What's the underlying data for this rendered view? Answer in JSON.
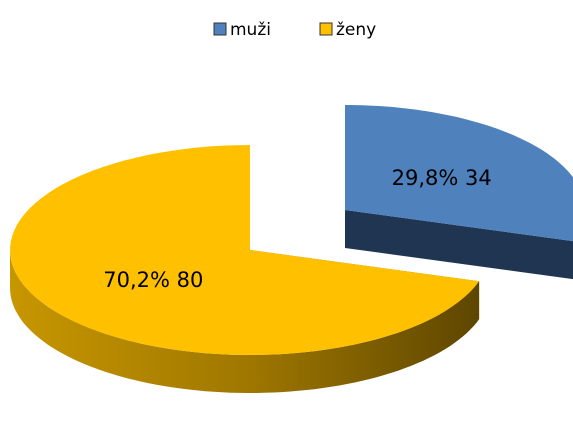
{
  "chart_data": {
    "type": "pie",
    "categories": [
      "muži",
      "ženy"
    ],
    "values": [
      34,
      80
    ],
    "value_labels": [
      "29,8%  34",
      "70,2%  80"
    ],
    "colors": [
      "#4f81bd",
      "#ffc000"
    ],
    "legend": "top",
    "exploded": [
      0
    ]
  }
}
